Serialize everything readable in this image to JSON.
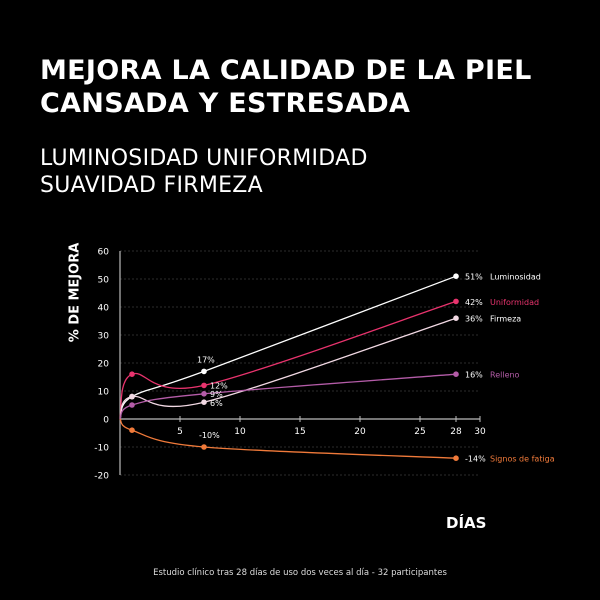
{
  "title": {
    "line1": "MEJORA LA CALIDAD DE LA PIEL",
    "line2": "CANSADA Y ESTRESADA"
  },
  "subtitle": {
    "line1": "LUMINOSIDAD UNIFORMIDAD",
    "line2": "SUAVIDAD FIRMEZA"
  },
  "footnote": "Estudio clínico tras 28 días de uso dos veces al día - 32 participantes",
  "chart_data": {
    "type": "line",
    "title": "",
    "xlabel": "DÍAS",
    "ylabel": "% DE MEJORA",
    "xlim": [
      0,
      30
    ],
    "ylim": [
      -20,
      60
    ],
    "xticks": [
      5,
      10,
      15,
      20,
      25,
      28,
      30
    ],
    "yticks": [
      60,
      50,
      40,
      30,
      20,
      10,
      0,
      -10,
      -20
    ],
    "grid": true,
    "series": [
      {
        "name": "Luminosidad",
        "color": "#ffffff",
        "points": [
          [
            0,
            0
          ],
          [
            1,
            8
          ],
          [
            7,
            17
          ],
          [
            28,
            51
          ]
        ],
        "labels": [
          {
            "x": 7,
            "text": "17%"
          },
          {
            "x": 28,
            "text": "51%"
          }
        ]
      },
      {
        "name": "Uniformidad",
        "color": "#e8336d",
        "points": [
          [
            0,
            0
          ],
          [
            1,
            16
          ],
          [
            7,
            12
          ],
          [
            28,
            42
          ]
        ],
        "labels": [
          {
            "x": 7,
            "text": "12%"
          },
          {
            "x": 28,
            "text": "42%"
          }
        ]
      },
      {
        "name": "Firmeza",
        "color": "#f2d9e4",
        "points": [
          [
            0,
            0
          ],
          [
            1,
            8
          ],
          [
            7,
            6
          ],
          [
            28,
            36
          ]
        ],
        "labels": [
          {
            "x": 7,
            "text": "6%"
          },
          {
            "x": 28,
            "text": "36%"
          }
        ]
      },
      {
        "name": "Relleno",
        "color": "#b45ca8",
        "points": [
          [
            0,
            0
          ],
          [
            1,
            5
          ],
          [
            7,
            9
          ],
          [
            28,
            16
          ]
        ],
        "labels": [
          {
            "x": 7,
            "text": "9%"
          },
          {
            "x": 28,
            "text": "16%"
          }
        ]
      },
      {
        "name": "Signos de fatiga",
        "color": "#f07a3a",
        "points": [
          [
            0,
            0
          ],
          [
            1,
            -4
          ],
          [
            7,
            -10
          ],
          [
            28,
            -14
          ]
        ],
        "labels": [
          {
            "x": 7,
            "text": "-10%"
          },
          {
            "x": 28,
            "text": "-14%"
          }
        ]
      }
    ]
  }
}
